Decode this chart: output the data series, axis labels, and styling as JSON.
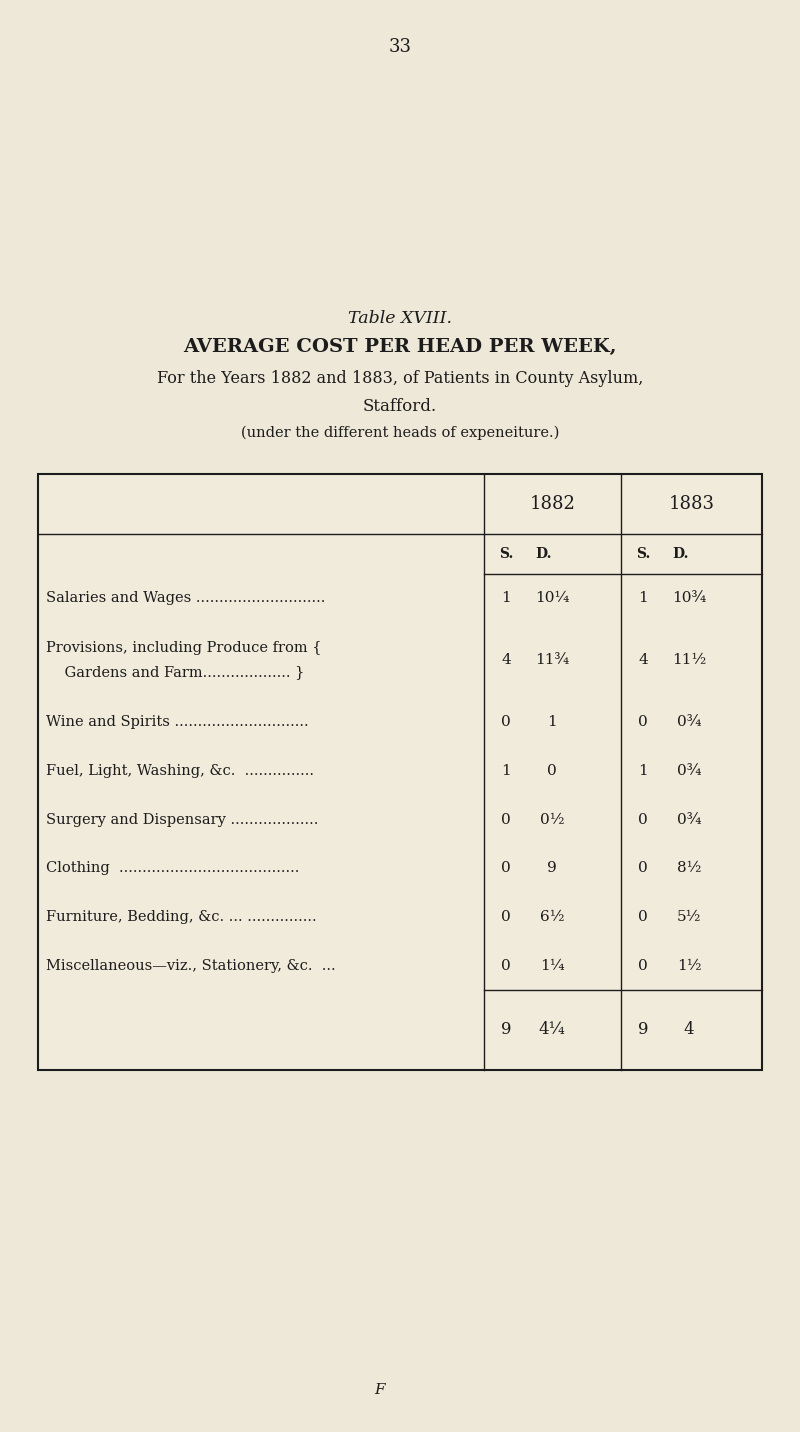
{
  "page_number": "33",
  "footer_letter": "F",
  "title_line1": "Table XVIII.",
  "title_line2": "AVERAGE COST PER HEAD PER WEEK,",
  "title_line3": "For the Years 1882 and 1883, of Patients in County Asylum,",
  "title_line4": "Stafford.",
  "title_line5": "(under the different heads of expeneiture.)",
  "rows": [
    {
      "label1": "Salaries and Wages ............................",
      "label2": null,
      "val1882_s": "1",
      "val1882_d": "10¼",
      "val1883_s": "1",
      "val1883_d": "10¾"
    },
    {
      "label1": "Provisions, including Produce from {",
      "label2": "    Gardens and Farm................... }",
      "val1882_s": "4",
      "val1882_d": "11¾",
      "val1883_s": "4",
      "val1883_d": "11½"
    },
    {
      "label1": "Wine and Spirits .............................",
      "label2": null,
      "val1882_s": "0",
      "val1882_d": "1",
      "val1883_s": "0",
      "val1883_d": "0¾"
    },
    {
      "label1": "Fuel, Light, Washing, &c.  ...............",
      "label2": null,
      "val1882_s": "1",
      "val1882_d": "0",
      "val1883_s": "1",
      "val1883_d": "0¾"
    },
    {
      "label1": "Surgery and Dispensary ...................",
      "label2": null,
      "val1882_s": "0",
      "val1882_d": "0½",
      "val1883_s": "0",
      "val1883_d": "0¾"
    },
    {
      "label1": "Clothing  .......................................",
      "label2": null,
      "val1882_s": "0",
      "val1882_d": "9",
      "val1883_s": "0",
      "val1883_d": "8½"
    },
    {
      "label1": "Furniture, Bedding, &c. ... ...............",
      "label2": null,
      "val1882_s": "0",
      "val1882_d": "6½",
      "val1883_s": "0",
      "val1883_d": "5½"
    },
    {
      "label1": "Miscellaneous—viz., Stationery, &c.  ...",
      "label2": null,
      "val1882_s": "0",
      "val1882_d": "1¼",
      "val1883_s": "0",
      "val1883_d": "1½"
    }
  ],
  "total1882_s": "9",
  "total1882_d": "4¼",
  "total1883_s": "9",
  "total1883_d": "4",
  "bg_color": "#ede8d8",
  "table_bg": "#f0ebdb",
  "text_color": "#1c1c1c"
}
